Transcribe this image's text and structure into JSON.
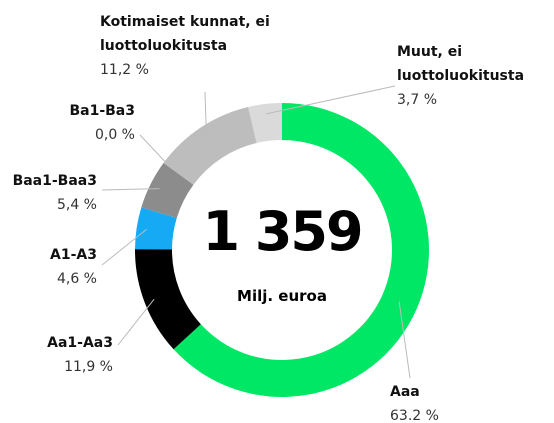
{
  "chart_data": {
    "type": "donut",
    "center_value": "1 359",
    "center_label": "Milj. euroa",
    "categories": [
      "Aaa",
      "Aa1-Aa3",
      "A1-A3",
      "Baa1-Baa3",
      "Ba1-Ba3",
      "Kotimaiset kunnat, ei\nluottoluokitusta",
      "Muut, ei\nluottoluokitusta"
    ],
    "values": [
      63.2,
      11.9,
      4.6,
      5.4,
      0.0,
      11.2,
      3.7
    ],
    "value_labels": [
      "63.2 %",
      "11,9 %",
      "4,6 %",
      "5,4 %",
      "0,0 %",
      "11,2 %",
      "3,7 %"
    ],
    "colors": [
      "#00e765",
      "#000000",
      "#16aaf5",
      "#8c8c8c",
      "#6e6e6e",
      "#bdbdbd",
      "#dadada"
    ]
  }
}
